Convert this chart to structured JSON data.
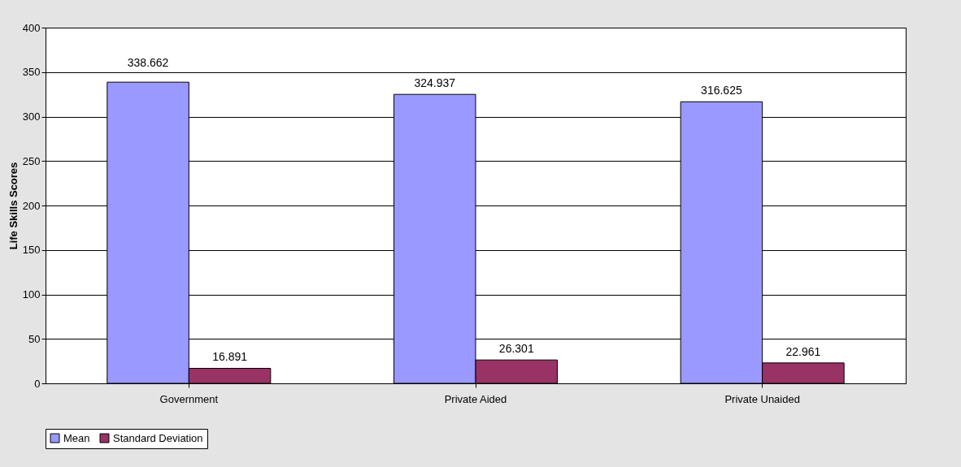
{
  "chart_data": {
    "type": "bar",
    "ylabel": "Life Skills Scores",
    "categories": [
      "Government",
      "Private Aided",
      "Private Unaided"
    ],
    "series": [
      {
        "name": "Mean",
        "color": "#9999ff",
        "values": [
          338.662,
          324.937,
          316.625
        ]
      },
      {
        "name": "Standard Deviation",
        "color": "#993366",
        "values": [
          16.891,
          26.301,
          22.961
        ]
      }
    ],
    "ylim": [
      0,
      400
    ],
    "yticks": [
      0,
      50,
      100,
      150,
      200,
      250,
      300,
      350,
      400
    ],
    "grid": "y",
    "legend": "bottom",
    "data_labels": true
  }
}
